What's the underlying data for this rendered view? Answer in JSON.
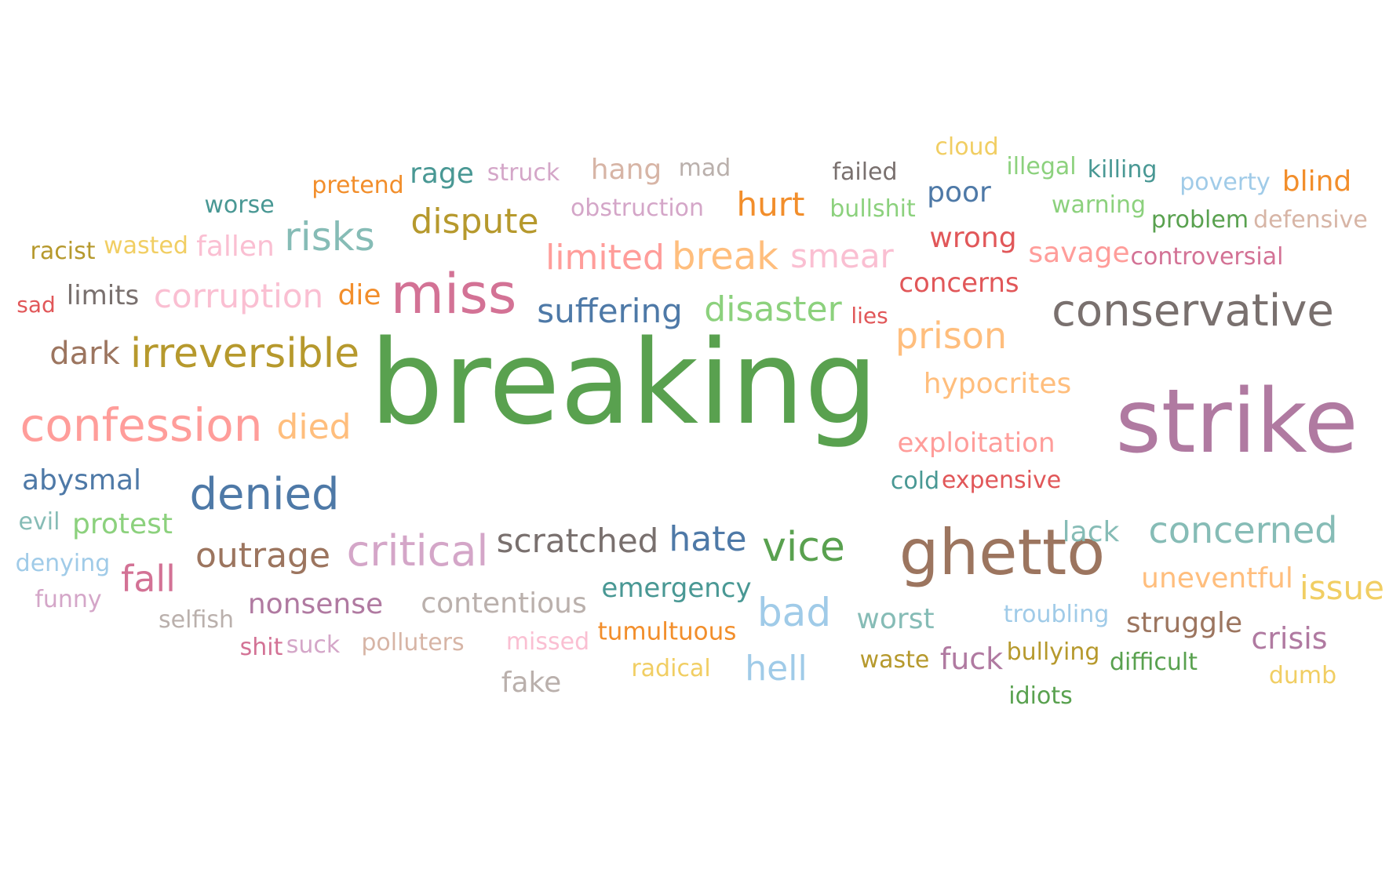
{
  "words": [
    {
      "text": "breaking",
      "color": "#59a14f"
    },
    {
      "text": "strike",
      "color": "#b07aa1"
    },
    {
      "text": "ghetto",
      "color": "#9c755f"
    },
    {
      "text": "miss",
      "color": "#d37295"
    },
    {
      "text": "conservative",
      "color": "#79706e"
    },
    {
      "text": "confession",
      "color": "#ff9d9a"
    },
    {
      "text": "irreversible",
      "color": "#b6992d"
    },
    {
      "text": "denied",
      "color": "#4e79a7"
    },
    {
      "text": "critical",
      "color": "#d4a6c8"
    },
    {
      "text": "vice",
      "color": "#59a14f"
    },
    {
      "text": "risks",
      "color": "#86bcb6"
    },
    {
      "text": "outrage",
      "color": "#9c755f"
    },
    {
      "text": "corruption",
      "color": "#fabfd2"
    },
    {
      "text": "suffering",
      "color": "#4e79a7"
    },
    {
      "text": "disaster",
      "color": "#8cd17d"
    },
    {
      "text": "limited",
      "color": "#ff9d9a"
    },
    {
      "text": "break",
      "color": "#ffbe7d"
    },
    {
      "text": "smear",
      "color": "#fabfd2"
    },
    {
      "text": "prison",
      "color": "#ffbe7d"
    },
    {
      "text": "dispute",
      "color": "#b6992d"
    },
    {
      "text": "scratched",
      "color": "#79706e"
    },
    {
      "text": "hate",
      "color": "#4e79a7"
    },
    {
      "text": "concerned",
      "color": "#86bcb6"
    },
    {
      "text": "bad",
      "color": "#a0cbe8"
    },
    {
      "text": "hell",
      "color": "#a0cbe8"
    },
    {
      "text": "died",
      "color": "#ffbe7d"
    },
    {
      "text": "fall",
      "color": "#d37295"
    },
    {
      "text": "dark",
      "color": "#9c755f"
    },
    {
      "text": "hurt",
      "color": "#f28e2b"
    },
    {
      "text": "contentious",
      "color": "#bab0ac"
    },
    {
      "text": "issue",
      "color": "#f1ce63"
    },
    {
      "text": "uneventful",
      "color": "#ffbe7d"
    },
    {
      "text": "hypocrites",
      "color": "#ffbe7d"
    },
    {
      "text": "exploitation",
      "color": "#ff9d9a"
    },
    {
      "text": "emergency",
      "color": "#499894"
    },
    {
      "text": "worst",
      "color": "#86bcb6"
    },
    {
      "text": "struggle",
      "color": "#9c755f"
    },
    {
      "text": "crisis",
      "color": "#b07aa1"
    },
    {
      "text": "fuck",
      "color": "#b07aa1"
    },
    {
      "text": "nonsense",
      "color": "#b07aa1"
    },
    {
      "text": "protest",
      "color": "#8cd17d"
    },
    {
      "text": "abysmal",
      "color": "#4e79a7"
    },
    {
      "text": "concerns",
      "color": "#e15759"
    },
    {
      "text": "wrong",
      "color": "#e15759"
    },
    {
      "text": "savage",
      "color": "#ff9d9a"
    },
    {
      "text": "poor",
      "color": "#4e79a7"
    },
    {
      "text": "rage",
      "color": "#499894"
    },
    {
      "text": "hang",
      "color": "#d7b5a6"
    },
    {
      "text": "blind",
      "color": "#f28e2b"
    },
    {
      "text": "fallen",
      "color": "#fabfd2"
    },
    {
      "text": "limits",
      "color": "#79706e"
    },
    {
      "text": "die",
      "color": "#f28e2b"
    },
    {
      "text": "lack",
      "color": "#86bcb6"
    },
    {
      "text": "fake",
      "color": "#bab0ac"
    },
    {
      "text": "tumultuous",
      "color": "#f28e2b"
    },
    {
      "text": "obstruction",
      "color": "#d4a6c8"
    },
    {
      "text": "controversial",
      "color": "#d37295"
    },
    {
      "text": "failed",
      "color": "#79706e"
    },
    {
      "text": "pretend",
      "color": "#f28e2b"
    },
    {
      "text": "struck",
      "color": "#d4a6c8"
    },
    {
      "text": "wasted",
      "color": "#f1ce63"
    },
    {
      "text": "racist",
      "color": "#b6992d"
    },
    {
      "text": "worse",
      "color": "#499894"
    },
    {
      "text": "killing",
      "color": "#499894"
    },
    {
      "text": "illegal",
      "color": "#8cd17d"
    },
    {
      "text": "cloud",
      "color": "#f1ce63"
    },
    {
      "text": "mad",
      "color": "#bab0ac"
    },
    {
      "text": "bullshit",
      "color": "#8cd17d"
    },
    {
      "text": "warning",
      "color": "#8cd17d"
    },
    {
      "text": "problem",
      "color": "#59a14f"
    },
    {
      "text": "defensive",
      "color": "#d7b5a6"
    },
    {
      "text": "poverty",
      "color": "#a0cbe8"
    },
    {
      "text": "sad",
      "color": "#e15759"
    },
    {
      "text": "lies",
      "color": "#e15759"
    },
    {
      "text": "cold",
      "color": "#499894"
    },
    {
      "text": "expensive",
      "color": "#e15759"
    },
    {
      "text": "evil",
      "color": "#86bcb6"
    },
    {
      "text": "denying",
      "color": "#a0cbe8"
    },
    {
      "text": "funny",
      "color": "#d4a6c8"
    },
    {
      "text": "selfish",
      "color": "#bab0ac"
    },
    {
      "text": "shit",
      "color": "#d37295"
    },
    {
      "text": "suck",
      "color": "#d4a6c8"
    },
    {
      "text": "polluters",
      "color": "#d7b5a6"
    },
    {
      "text": "missed",
      "color": "#fabfd2"
    },
    {
      "text": "radical",
      "color": "#f1ce63"
    },
    {
      "text": "waste",
      "color": "#b6992d"
    },
    {
      "text": "bullying",
      "color": "#b6992d"
    },
    {
      "text": "difficult",
      "color": "#59a14f"
    },
    {
      "text": "troubling",
      "color": "#a0cbe8"
    },
    {
      "text": "idiots",
      "color": "#59a14f"
    },
    {
      "text": "dumb",
      "color": "#f1ce63"
    }
  ]
}
